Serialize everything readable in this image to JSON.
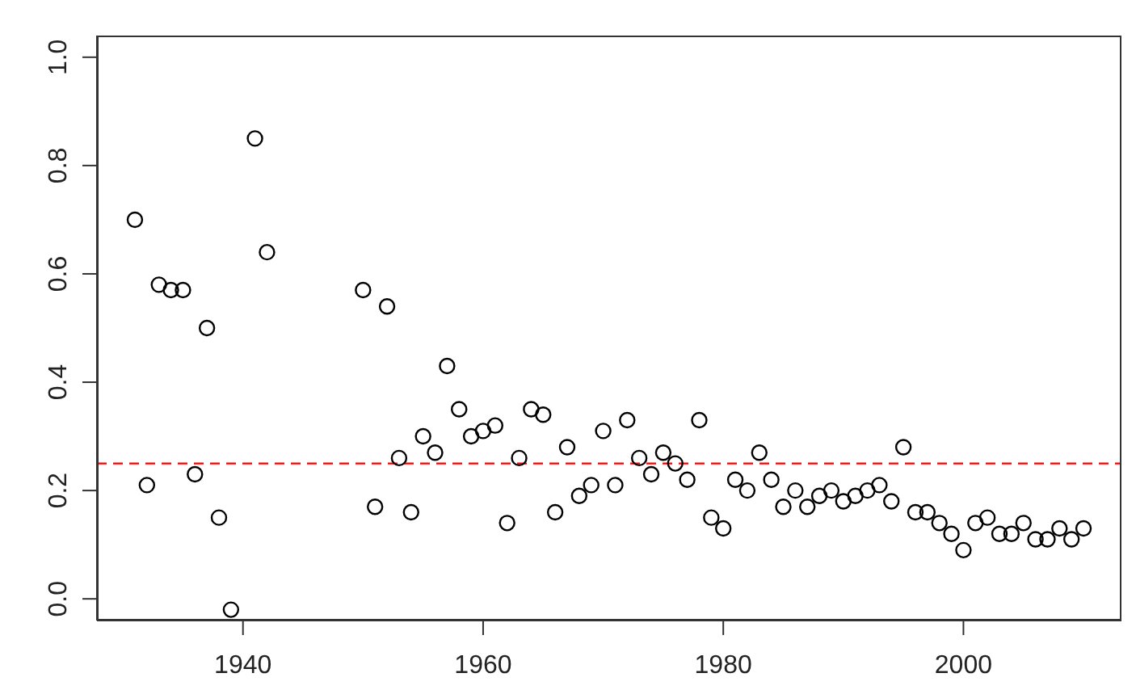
{
  "chart_data": {
    "type": "scatter",
    "marker": "circle",
    "grid": false,
    "legend": false,
    "x": [
      1931,
      1932,
      1933,
      1934,
      1935,
      1936,
      1937,
      1938,
      1939,
      1941,
      1942,
      1950,
      1951,
      1952,
      1953,
      1954,
      1955,
      1956,
      1957,
      1958,
      1959,
      1960,
      1961,
      1962,
      1963,
      1964,
      1965,
      1966,
      1967,
      1968,
      1969,
      1970,
      1971,
      1972,
      1973,
      1974,
      1975,
      1976,
      1977,
      1978,
      1979,
      1980,
      1981,
      1982,
      1983,
      1984,
      1985,
      1986,
      1987,
      1988,
      1989,
      1990,
      1991,
      1992,
      1993,
      1994,
      1995,
      1996,
      1997,
      1998,
      1999,
      2000,
      2001,
      2002,
      2003,
      2004,
      2005,
      2006,
      2007,
      2008,
      2009,
      2010
    ],
    "series": [
      {
        "color": "#000000",
        "values": [
          0.7,
          0.21,
          0.58,
          0.57,
          0.57,
          0.23,
          0.5,
          0.15,
          -0.02,
          0.85,
          0.64,
          0.57,
          0.17,
          0.54,
          0.26,
          0.16,
          0.3,
          0.27,
          0.43,
          0.35,
          0.3,
          0.31,
          0.32,
          0.14,
          0.26,
          0.35,
          0.34,
          0.16,
          0.28,
          0.19,
          0.21,
          0.31,
          0.21,
          0.33,
          0.26,
          0.23,
          0.27,
          0.25,
          0.22,
          0.33,
          0.15,
          0.13,
          0.22,
          0.2,
          0.27,
          0.22,
          0.17,
          0.2,
          0.17,
          0.19,
          0.2,
          0.18,
          0.19,
          0.2,
          0.21,
          0.18,
          0.28,
          0.16,
          0.16,
          0.14,
          0.12,
          0.09,
          0.14,
          0.15,
          0.12,
          0.12,
          0.14,
          0.11,
          0.11,
          0.13,
          0.11,
          0.13
        ]
      }
    ],
    "xlim": [
      1927.84,
      2013.16
    ],
    "xticks": [
      1940,
      1960,
      1980,
      2000
    ],
    "ylim": [
      -0.04,
      1.04
    ],
    "yticks": [
      {
        "value": 0,
        "label": "0.0"
      },
      {
        "value": 0.2,
        "label": "0.2"
      },
      {
        "value": 0.4,
        "label": "0.4"
      },
      {
        "value": 0.6,
        "label": "0.6"
      },
      {
        "value": 0.8,
        "label": "0.8"
      },
      {
        "value": 1,
        "label": "1.0"
      }
    ],
    "ref_lines": [
      {
        "axis": "y",
        "value": 0.25,
        "color": "#ff0000",
        "line_style": "dashed"
      }
    ]
  }
}
